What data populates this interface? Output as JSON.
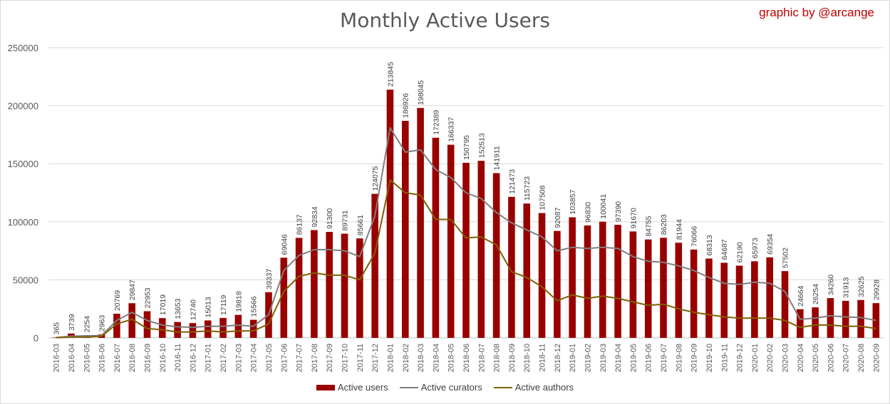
{
  "title": "Monthly Active Users",
  "credit": "graphic by @arcange",
  "colors": {
    "active_users": "#990000",
    "active_curators": "#7f7f7f",
    "active_authors": "#7f6000",
    "grid": "#d9d9d9",
    "axis_text": "#595959"
  },
  "chart_data": {
    "type": "bar",
    "title": "Monthly Active Users",
    "ylim": [
      0,
      250000
    ],
    "yticks": [
      0,
      50000,
      100000,
      150000,
      200000,
      250000
    ],
    "ytick_labels": [
      "0",
      "50000",
      "100000",
      "150000",
      "200000",
      "250000"
    ],
    "grid": true,
    "legend_position": "bottom",
    "categories": [
      "2016-03",
      "2016-04",
      "2016-05",
      "2016-06",
      "2016-07",
      "2016-08",
      "2016-09",
      "2016-10",
      "2016-11",
      "2016-12",
      "2017-01",
      "2017-02",
      "2017-03",
      "2017-04",
      "2017-05",
      "2017-06",
      "2017-07",
      "2017-08",
      "2017-09",
      "2017-10",
      "2017-11",
      "2017-12",
      "2018-01",
      "2018-02",
      "2018-03",
      "2018-04",
      "2018-05",
      "2018-06",
      "2018-07",
      "2018-08",
      "2018-09",
      "2018-10",
      "2018-11",
      "2018-12",
      "2019-01",
      "2019-02",
      "2019-03",
      "2019-04",
      "2019-05",
      "2019-06",
      "2019-07",
      "2019-08",
      "2019-09",
      "2019-10",
      "2019-11",
      "2019-12",
      "2020-01",
      "2020-02",
      "2020-03",
      "2020-04",
      "2020-05",
      "2020-06",
      "2020-07",
      "2020-08",
      "2020-09"
    ],
    "series": [
      {
        "name": "Active users",
        "kind": "bar",
        "color": "#990000",
        "values": [
          365,
          3739,
          2254,
          2963,
          20769,
          29847,
          22953,
          17019,
          13653,
          12740,
          15013,
          17119,
          19818,
          15566,
          39337,
          69046,
          86137,
          92834,
          91300,
          89731,
          85661,
          124075,
          213845,
          186926,
          198045,
          172389,
          166337,
          150795,
          152513,
          141911,
          121473,
          115723,
          107508,
          92087,
          103857,
          96830,
          100041,
          97390,
          91670,
          84755,
          86203,
          81944,
          76066,
          68313,
          64687,
          62190,
          65973,
          69354,
          57502,
          24664,
          26254,
          34260,
          31913,
          32625,
          29928
        ],
        "labels": [
          "365",
          "3739",
          "2254",
          "2963",
          "20769",
          "29847",
          "22953",
          "17019",
          "13653",
          "12740",
          "15013",
          "17119",
          "19818",
          "15566",
          "39337",
          "69046",
          "86137",
          "92834",
          "91300",
          "89731",
          "85661",
          "124075",
          "213845",
          "186926",
          "198045",
          "172389",
          "166337",
          "150795",
          "152513",
          "141911",
          "121473",
          "115723",
          "107508",
          "92087",
          "103857",
          "96830",
          "100041",
          "97390",
          "91670",
          "84755",
          "86203",
          "81944",
          "76066",
          "68313",
          "64687",
          "62190",
          "65973",
          "69354",
          "57502",
          "24664",
          "26254",
          "34260",
          "31913",
          "32625",
          "29928"
        ]
      },
      {
        "name": "Active curators",
        "kind": "line",
        "color": "#7f7f7f",
        "values": [
          300,
          1500,
          1800,
          2000,
          15000,
          22000,
          15000,
          11000,
          9500,
          9000,
          10000,
          10000,
          11000,
          10000,
          20000,
          58000,
          71000,
          76000,
          76000,
          75000,
          70000,
          105000,
          181000,
          160000,
          162000,
          145000,
          138000,
          125000,
          120000,
          108000,
          99000,
          93000,
          87000,
          75000,
          78000,
          77000,
          78000,
          77000,
          70000,
          66000,
          65000,
          62000,
          58000,
          52000,
          47000,
          46000,
          48000,
          47000,
          40000,
          16000,
          17000,
          19000,
          18000,
          17500,
          15000
        ]
      },
      {
        "name": "Active authors",
        "kind": "line",
        "color": "#7f6000",
        "values": [
          200,
          700,
          700,
          1500,
          12000,
          16000,
          8000,
          7000,
          5000,
          5000,
          6000,
          5000,
          6000,
          6000,
          12000,
          40000,
          53000,
          56000,
          54000,
          54000,
          50000,
          73000,
          136000,
          125000,
          123000,
          102000,
          102000,
          86000,
          87000,
          80000,
          57000,
          52000,
          44000,
          32000,
          37000,
          34000,
          36000,
          34000,
          31000,
          28000,
          29000,
          25000,
          22000,
          20000,
          18000,
          17000,
          17000,
          17000,
          15000,
          9000,
          11000,
          11000,
          10000,
          10000,
          8000
        ]
      }
    ]
  },
  "legend": {
    "active_users": "Active users",
    "active_curators": "Active curators",
    "active_authors": "Active authors"
  }
}
